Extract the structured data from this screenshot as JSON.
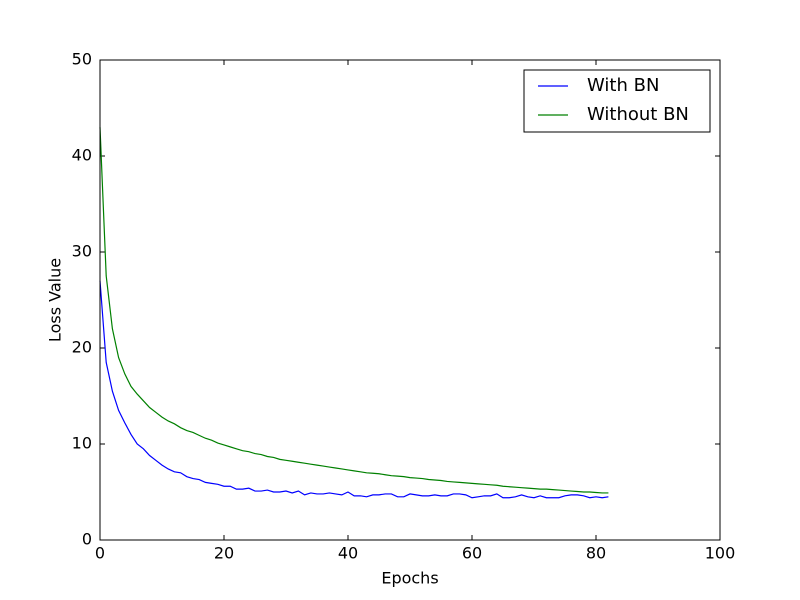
{
  "chart_data": {
    "type": "line",
    "xlabel": "Epochs",
    "ylabel": "Loss Value",
    "x": [
      0,
      1,
      2,
      3,
      4,
      5,
      6,
      7,
      8,
      9,
      10,
      11,
      12,
      13,
      14,
      15,
      16,
      17,
      18,
      19,
      20,
      21,
      22,
      23,
      24,
      25,
      26,
      27,
      28,
      29,
      30,
      31,
      32,
      33,
      34,
      35,
      36,
      37,
      38,
      39,
      40,
      41,
      42,
      43,
      44,
      45,
      46,
      47,
      48,
      49,
      50,
      51,
      52,
      53,
      54,
      55,
      56,
      57,
      58,
      59,
      60,
      61,
      62,
      63,
      64,
      65,
      66,
      67,
      68,
      69,
      70,
      71,
      72,
      73,
      74,
      75,
      76,
      77,
      78,
      79,
      80,
      81,
      82
    ],
    "series": [
      {
        "name": "With BN",
        "color": "#0000ff",
        "values": [
          27,
          18.5,
          15.5,
          13.5,
          12.2,
          11,
          10,
          9.5,
          8.8,
          8.3,
          7.8,
          7.4,
          7.1,
          7.0,
          6.6,
          6.4,
          6.3,
          6.0,
          5.9,
          5.8,
          5.6,
          5.6,
          5.3,
          5.3,
          5.4,
          5.1,
          5.1,
          5.2,
          5.0,
          5.0,
          5.1,
          4.9,
          5.1,
          4.7,
          4.9,
          4.8,
          4.8,
          4.9,
          4.8,
          4.7,
          5.0,
          4.6,
          4.6,
          4.5,
          4.7,
          4.7,
          4.8,
          4.8,
          4.5,
          4.5,
          4.8,
          4.7,
          4.6,
          4.6,
          4.7,
          4.6,
          4.6,
          4.8,
          4.8,
          4.7,
          4.4,
          4.5,
          4.6,
          4.6,
          4.8,
          4.4,
          4.4,
          4.5,
          4.7,
          4.5,
          4.4,
          4.6,
          4.4,
          4.4,
          4.4,
          4.6,
          4.7,
          4.7,
          4.6,
          4.4,
          4.5,
          4.4,
          4.5
        ]
      },
      {
        "name": "Without BN",
        "color": "#008000",
        "values": [
          43,
          27.5,
          22,
          19,
          17.3,
          16,
          15.2,
          14.5,
          13.8,
          13.3,
          12.8,
          12.4,
          12.1,
          11.7,
          11.4,
          11.2,
          10.9,
          10.6,
          10.4,
          10.1,
          9.9,
          9.7,
          9.5,
          9.3,
          9.2,
          9.0,
          8.9,
          8.7,
          8.6,
          8.4,
          8.3,
          8.2,
          8.1,
          8.0,
          7.9,
          7.8,
          7.7,
          7.6,
          7.5,
          7.4,
          7.3,
          7.2,
          7.1,
          7.0,
          6.95,
          6.9,
          6.8,
          6.7,
          6.65,
          6.6,
          6.5,
          6.45,
          6.4,
          6.3,
          6.25,
          6.2,
          6.1,
          6.05,
          6.0,
          5.95,
          5.9,
          5.85,
          5.8,
          5.75,
          5.7,
          5.6,
          5.55,
          5.5,
          5.45,
          5.4,
          5.35,
          5.3,
          5.3,
          5.25,
          5.2,
          5.15,
          5.1,
          5.05,
          5.0,
          5.0,
          4.95,
          4.9,
          4.9
        ]
      }
    ],
    "xlim": [
      0,
      100
    ],
    "xticks": [
      0,
      20,
      40,
      60,
      80,
      100
    ],
    "ylim": [
      0,
      50
    ],
    "yticks": [
      0,
      10,
      20,
      30,
      40,
      50
    ],
    "legend": "upper right"
  }
}
